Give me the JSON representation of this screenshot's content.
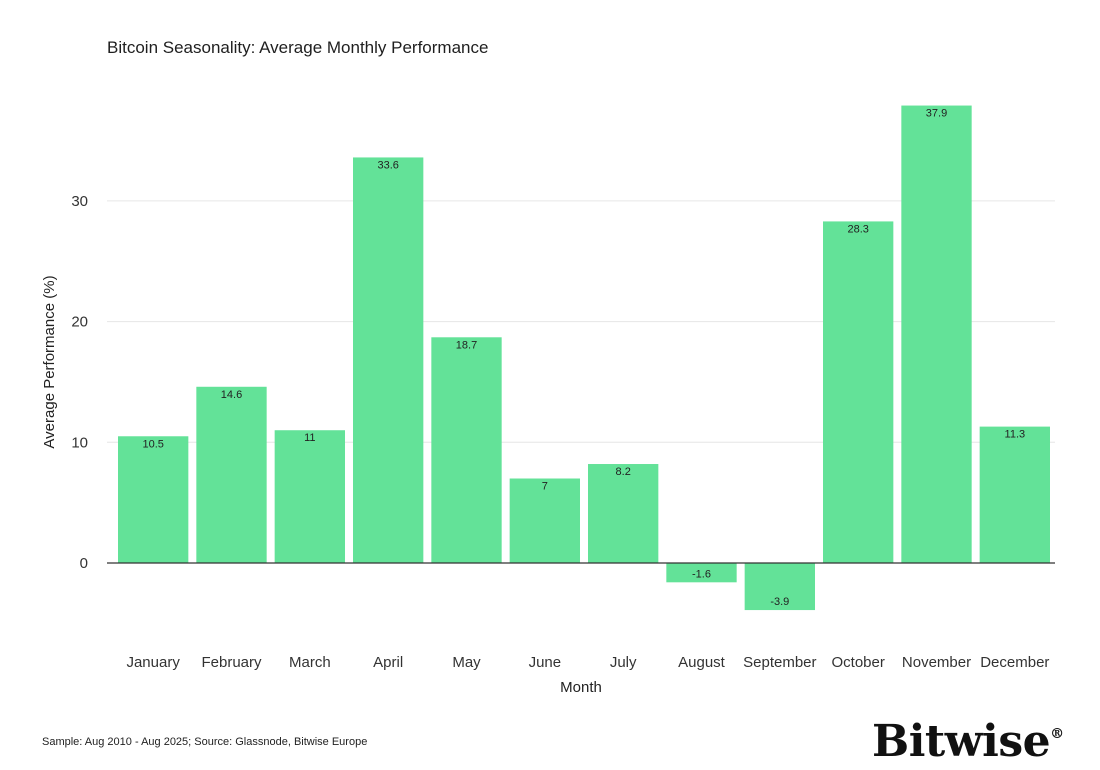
{
  "title": "Bitcoin Seasonality: Average Monthly Performance",
  "footer_note": "Sample: Aug 2010 - Aug 2025; Source: Glassnode, Bitwise Europe",
  "brand": {
    "name": "Bitwise",
    "mark": "®"
  },
  "colors": {
    "bar": "#63e298",
    "grid": "#e6e6e6",
    "axis": "#333333"
  },
  "chart_data": {
    "type": "bar",
    "categories": [
      "January",
      "February",
      "March",
      "April",
      "May",
      "June",
      "July",
      "August",
      "September",
      "October",
      "November",
      "December"
    ],
    "values": [
      10.5,
      14.6,
      11,
      33.6,
      18.7,
      7,
      8.2,
      -1.6,
      -3.9,
      28.3,
      37.9,
      11.3
    ],
    "labels": [
      "10.5",
      "14.6",
      "11",
      "33.6",
      "18.7",
      "7",
      "8.2",
      "-1.6",
      "-3.9",
      "28.3",
      "37.9",
      "11.3"
    ],
    "xlabel": "Month",
    "ylabel": "Average Performance (%)",
    "yticks": [
      0,
      10,
      20,
      30
    ],
    "ylim": [
      -6.8,
      37.9
    ],
    "grid": true,
    "legend": "none"
  }
}
